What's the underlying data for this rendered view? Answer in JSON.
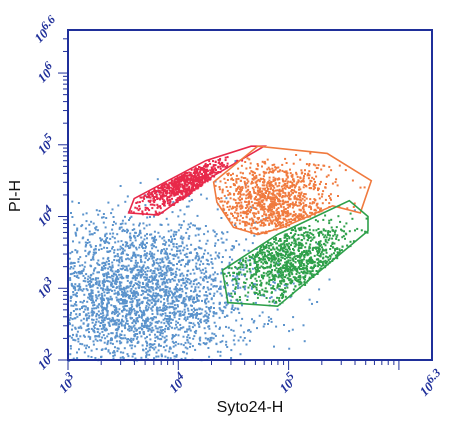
{
  "chart_data": {
    "type": "scatter",
    "title": "",
    "xlabel": "Syto24-H",
    "ylabel": "PI-H",
    "x_scale": "log",
    "y_scale": "log",
    "xlim": [
      1000,
      1995262
    ],
    "ylim": [
      100,
      3981071
    ],
    "x_ticks": [
      {
        "value": 1000,
        "base": "10",
        "exp": "3"
      },
      {
        "value": 10000,
        "base": "10",
        "exp": "4"
      },
      {
        "value": 100000,
        "base": "10",
        "exp": "5"
      },
      {
        "value": 1995262,
        "base": "10",
        "exp": "6.3"
      }
    ],
    "y_ticks": [
      {
        "value": 100,
        "base": "10",
        "exp": "2"
      },
      {
        "value": 1000,
        "base": "10",
        "exp": "3"
      },
      {
        "value": 10000,
        "base": "10",
        "exp": "4"
      },
      {
        "value": 100000,
        "base": "10",
        "exp": "5"
      },
      {
        "value": 1000000,
        "base": "10",
        "exp": "6"
      },
      {
        "value": 3981071,
        "base": "10",
        "exp": "6.6"
      }
    ],
    "grid": false,
    "legend": "none",
    "axis_color": "#1f2f9a",
    "populations": [
      {
        "color": "#5b93cc",
        "gate": false,
        "center_log": [
          3.6,
          2.9
        ],
        "spread_log": [
          0.55,
          0.55
        ]
      },
      {
        "color": "#e8294a",
        "gate": true,
        "gate_color": "#e8294a",
        "center_log": [
          4.1,
          4.45
        ],
        "spread_log": [
          0.3,
          0.2
        ],
        "gate_polygon_log": [
          [
            3.6,
            4.25
          ],
          [
            4.25,
            4.78
          ],
          [
            4.66,
            4.98
          ],
          [
            4.78,
            4.98
          ],
          [
            4.3,
            4.55
          ],
          [
            3.82,
            4.02
          ],
          [
            3.55,
            4.05
          ]
        ]
      },
      {
        "color": "#f07a3e",
        "gate": true,
        "gate_color": "#f07a3e",
        "center_log": [
          4.85,
          4.2
        ],
        "spread_log": [
          0.28,
          0.3
        ],
        "gate_polygon_log": [
          [
            4.32,
            4.48
          ],
          [
            4.72,
            4.98
          ],
          [
            5.35,
            4.88
          ],
          [
            5.75,
            4.5
          ],
          [
            5.65,
            4.05
          ],
          [
            5.4,
            4.15
          ],
          [
            4.95,
            3.85
          ],
          [
            4.72,
            3.75
          ],
          [
            4.5,
            3.85
          ],
          [
            4.35,
            4.2
          ]
        ]
      },
      {
        "color": "#2ea04a",
        "gate": true,
        "gate_color": "#2ea04a",
        "center_log": [
          5.05,
          3.4
        ],
        "spread_log": [
          0.32,
          0.3
        ],
        "gate_polygon_log": [
          [
            4.4,
            3.25
          ],
          [
            4.45,
            2.8
          ],
          [
            4.9,
            2.75
          ],
          [
            5.72,
            3.8
          ],
          [
            5.72,
            4.0
          ],
          [
            5.55,
            4.22
          ],
          [
            4.9,
            3.75
          ]
        ]
      }
    ]
  }
}
